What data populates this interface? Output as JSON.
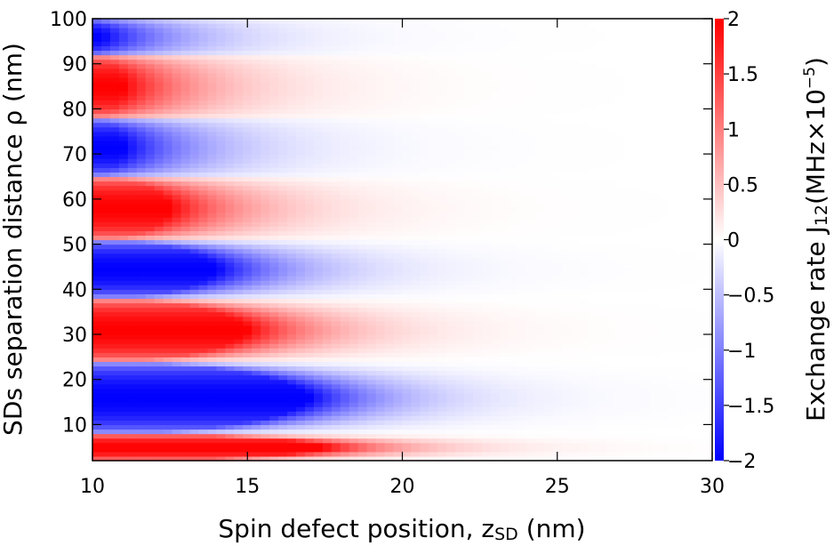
{
  "chart_data": {
    "type": "heatmap",
    "title": "",
    "xlabel": "Spin defect position, z",
    "xlabel_sub": "SD",
    "xlabel_unit": " (nm)",
    "ylabel": "SDs separation distance ρ (nm)",
    "colorbar_label": "Exchange rate J",
    "colorbar_label_sub": "12",
    "colorbar_label_unit": "(MHz×10",
    "colorbar_label_sup": "−5",
    "colorbar_label_end": ")",
    "xlim": [
      10,
      30
    ],
    "ylim": [
      2,
      100
    ],
    "clim": [
      -2,
      2
    ],
    "x_ticks": [
      10,
      15,
      20,
      25,
      30
    ],
    "x_tick_labels": [
      "10",
      "15",
      "20",
      "25",
      "30"
    ],
    "y_ticks": [
      10,
      20,
      30,
      40,
      50,
      60,
      70,
      80,
      90,
      100
    ],
    "y_tick_labels": [
      "10",
      "20",
      "30",
      "40",
      "50",
      "60",
      "70",
      "80",
      "90",
      "100"
    ],
    "colorbar_ticks": [
      2,
      1.5,
      1,
      0.5,
      0,
      -0.5,
      -1,
      -1.5,
      -2
    ],
    "colorbar_tick_labels": [
      "2",
      "1.5",
      "1",
      "0.5",
      "0",
      "−0.5",
      "−1",
      "−1.5",
      "−2"
    ],
    "colormap": {
      "negative": "#0000ff",
      "zero": "#ffffff",
      "positive": "#ff0000"
    },
    "grid": false,
    "bands": [
      {
        "rho_min": 2,
        "rho_max": 8,
        "sign": 1,
        "extent_z": 17.5
      },
      {
        "rho_min": 8,
        "rho_max": 24,
        "sign": -1,
        "extent_z": 17.0
      },
      {
        "rho_min": 24,
        "rho_max": 38,
        "sign": 1,
        "extent_z": 15.0
      },
      {
        "rho_min": 38,
        "rho_max": 51,
        "sign": -1,
        "extent_z": 14.0
      },
      {
        "rho_min": 51,
        "rho_max": 65,
        "sign": 1,
        "extent_z": 12.5
      },
      {
        "rho_min": 65,
        "rho_max": 78,
        "sign": -1,
        "extent_z": 11.0
      },
      {
        "rho_min": 78,
        "rho_max": 92,
        "sign": 1,
        "extent_z": 11.0
      },
      {
        "rho_min": 92,
        "rho_max": 100,
        "sign": -1,
        "extent_z": 10.3
      }
    ]
  }
}
